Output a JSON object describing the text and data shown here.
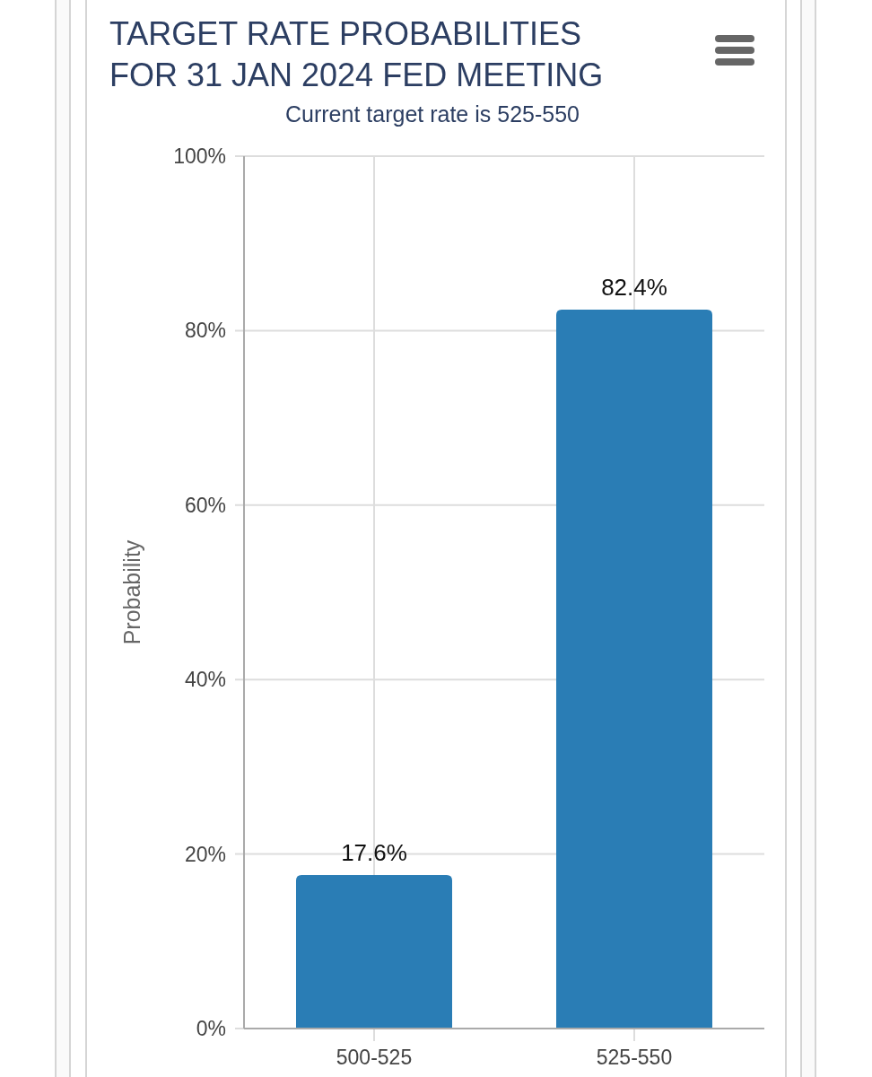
{
  "chart_data": {
    "type": "bar",
    "title": "TARGET RATE PROBABILITIES FOR 31 JAN 2024 FED MEETING",
    "subtitle": "Current target rate is 525-550",
    "ylabel": "Probability",
    "categories": [
      "500-525",
      "525-550"
    ],
    "values": [
      17.6,
      82.4
    ],
    "value_labels": [
      "17.6%",
      "82.4%"
    ],
    "color": "#2a7db5",
    "ylim": [
      0,
      100
    ],
    "yticks": [
      {
        "value": 0,
        "label": "0%"
      },
      {
        "value": 20,
        "label": "20%"
      },
      {
        "value": 40,
        "label": "40%"
      },
      {
        "value": 60,
        "label": "60%"
      },
      {
        "value": 80,
        "label": "80%"
      },
      {
        "value": 100,
        "label": "100%"
      }
    ],
    "grid": true
  }
}
